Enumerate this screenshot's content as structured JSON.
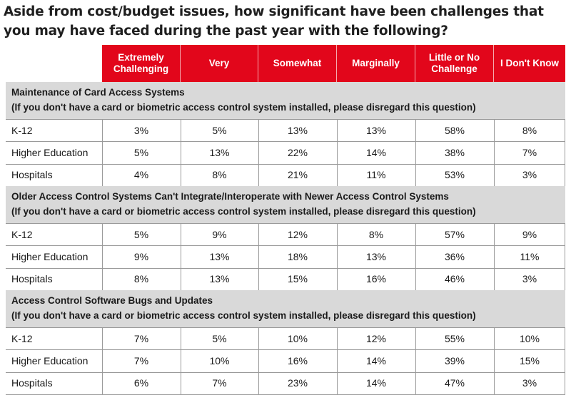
{
  "title": "Aside from cost/budget issues, how significant have been challenges that you may have faced during the past year with the following?",
  "chart_data": {
    "type": "table",
    "columns": [
      "Extremely Challenging",
      "Very",
      "Somewhat",
      "Marginally",
      "Little or No Challenge",
      "I Don't Know"
    ],
    "sections": [
      {
        "title": "Maintenance of Card Access Systems",
        "subtitle": "(If you don't have a card or biometric access control system installed, please disregard this question)",
        "rows": [
          {
            "label": "K-12",
            "values": [
              "3%",
              "5%",
              "13%",
              "13%",
              "58%",
              "8%"
            ]
          },
          {
            "label": "Higher Education",
            "values": [
              "5%",
              "13%",
              "22%",
              "14%",
              "38%",
              "7%"
            ]
          },
          {
            "label": "Hospitals",
            "values": [
              "4%",
              "8%",
              "21%",
              "11%",
              "53%",
              "3%"
            ]
          }
        ]
      },
      {
        "title": "Older Access Control Systems Can't Integrate/Interoperate with Newer Access Control Systems",
        "subtitle": "(If you don't have a card or biometric access control system installed, please disregard this question)",
        "rows": [
          {
            "label": "K-12",
            "values": [
              "5%",
              "9%",
              "12%",
              "8%",
              "57%",
              "9%"
            ]
          },
          {
            "label": "Higher Education",
            "values": [
              "9%",
              "13%",
              "18%",
              "13%",
              "36%",
              "11%"
            ]
          },
          {
            "label": "Hospitals",
            "values": [
              "8%",
              "13%",
              "15%",
              "16%",
              "46%",
              "3%"
            ]
          }
        ]
      },
      {
        "title": "Access Control Software Bugs and Updates",
        "subtitle": "(If you don't have a card or biometric access control system installed, please disregard this question)",
        "rows": [
          {
            "label": "K-12",
            "values": [
              "7%",
              "5%",
              "10%",
              "12%",
              "55%",
              "10%"
            ]
          },
          {
            "label": "Higher Education",
            "values": [
              "7%",
              "10%",
              "16%",
              "14%",
              "39%",
              "15%"
            ]
          },
          {
            "label": "Hospitals",
            "values": [
              "6%",
              "7%",
              "23%",
              "14%",
              "47%",
              "3%"
            ]
          }
        ]
      }
    ],
    "colors": {
      "header_bg": "#e2061b",
      "header_text": "#ffffff",
      "section_bg": "#d9d9d9"
    }
  }
}
